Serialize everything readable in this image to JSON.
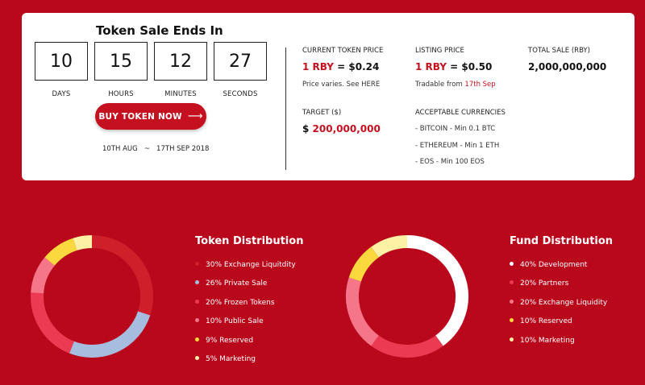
{
  "sale": {
    "title": "Token Sale Ends In",
    "countdown": [
      {
        "value": "10",
        "label": "DAYS"
      },
      {
        "value": "15",
        "label": "HOURS"
      },
      {
        "value": "12",
        "label": "MINUTES"
      },
      {
        "value": "27",
        "label": "SECONDS"
      }
    ],
    "buy_label": "BUY TOKEN NOW",
    "buy_arrow": "⟶",
    "dates": "10TH AUG   ~   17TH SEP 2018"
  },
  "info": {
    "current_price": {
      "label": "CURRENT TOKEN PRICE",
      "token": "1 RBY",
      "eq": " = $0.24",
      "note_prefix": "Price varies. See ",
      "note_link": "HERE"
    },
    "listing_price": {
      "label": "LISTING PRICE",
      "token": "1 RBY",
      "eq": " = $0.50",
      "note_prefix": "Tradable from ",
      "note_link": "17th Sep"
    },
    "total_sale": {
      "label": "TOTAL SALE (RBY)",
      "value": "2,000,000,000"
    },
    "target": {
      "label": "TARGET ($)",
      "currency": "$ ",
      "value": "200,000,000"
    },
    "currencies": {
      "label": "ACCEPTABLE CURRENCIES",
      "items": [
        "- BITCOIN - Min 0.1 BTC",
        "- ETHEREUM - Min 1 ETH",
        "- EOS - Min 100 EOS"
      ]
    }
  },
  "token_distribution": {
    "title": "Token Distribution",
    "items": [
      {
        "label": "30% Exchange Liquitdity",
        "value": 30,
        "color": "#cf1f2b"
      },
      {
        "label": "26% Private Sale",
        "value": 26,
        "color": "#a6bde0"
      },
      {
        "label": "20% Frozen Tokens",
        "value": 20,
        "color": "#ec3a52"
      },
      {
        "label": "10% Public Sale",
        "value": 10,
        "color": "#f47688"
      },
      {
        "label": "9% Reserved",
        "value": 9,
        "color": "#fbd83e"
      },
      {
        "label": "5% Marketing",
        "value": 5,
        "color": "#fdf1a6"
      }
    ]
  },
  "fund_distribution": {
    "title": "Fund Distribution",
    "items": [
      {
        "label": "40% Development",
        "value": 40,
        "color": "#ffffff"
      },
      {
        "label": "20% Partners",
        "value": 20,
        "color": "#ec3a52"
      },
      {
        "label": "20% Exchange Liquidity",
        "value": 20,
        "color": "#f47688"
      },
      {
        "label": "10% Reserved",
        "value": 10,
        "color": "#fbd83e"
      },
      {
        "label": "10% Marketing",
        "value": 10,
        "color": "#fdf1a6"
      }
    ]
  }
}
